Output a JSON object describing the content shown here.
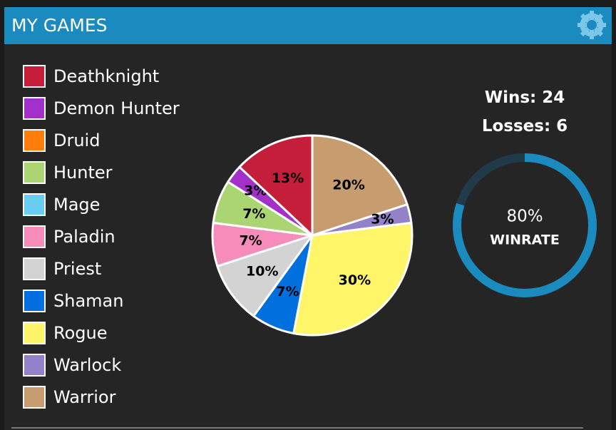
{
  "header": {
    "title": "MY GAMES"
  },
  "chart_data": {
    "type": "pie",
    "categories": [
      "Deathknight",
      "Demon Hunter",
      "Druid",
      "Hunter",
      "Mage",
      "Paladin",
      "Priest",
      "Shaman",
      "Rogue",
      "Warlock",
      "Warrior"
    ],
    "values": [
      13,
      3,
      0,
      7,
      0,
      7,
      10,
      7,
      30,
      3,
      20
    ],
    "value_labels": [
      "13%",
      "3%",
      null,
      "7%",
      null,
      "7%",
      "10%",
      "7%",
      "30%",
      "3%",
      "20%"
    ],
    "colors": [
      "#c41e3a",
      "#a330c9",
      "#ff7d0a",
      "#abd473",
      "#69ccf0",
      "#f58cba",
      "#d3d3d3",
      "#0070de",
      "#fff569",
      "#9482c9",
      "#c79c6e"
    ]
  },
  "stats": {
    "wins": {
      "label": "Wins:",
      "value": 24
    },
    "losses": {
      "label": "Losses:",
      "value": 6
    },
    "winrate": {
      "value": 80,
      "value_label": "80%",
      "label": "WINRATE"
    }
  }
}
